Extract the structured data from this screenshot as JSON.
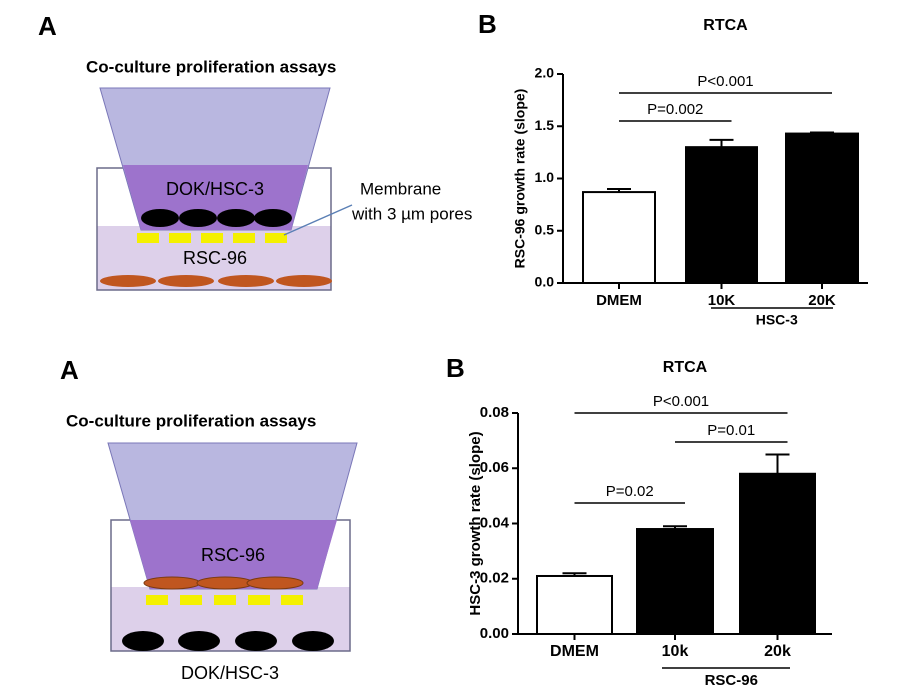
{
  "diagrams": [
    {
      "panel": "A",
      "title": "Co-culture proliferation assays",
      "upper_label": "DOK/HSC-3",
      "lower_label": "RSC-96",
      "note": [
        "Membrane",
        "with 3 µm pores"
      ]
    },
    {
      "panel": "A",
      "title": "Co-culture proliferation assays",
      "upper_label": "RSC-96",
      "lower_label": "DOK/HSC-3"
    }
  ],
  "chart_data": [
    {
      "type": "bar",
      "panel": "B",
      "title": "RTCA",
      "y_label": "RSC-96 growth rate (slope)",
      "categories": [
        "DMEM",
        "10K",
        "20K"
      ],
      "values": [
        0.87,
        1.3,
        1.43
      ],
      "errors": [
        0.03,
        0.07,
        0.01
      ],
      "colors": [
        "#ffffff",
        "#000000",
        "#000000"
      ],
      "ylim": [
        0,
        2
      ],
      "yticks": [
        {
          "value": 0,
          "label": "0.0"
        },
        {
          "value": 0.5,
          "label": "0.5"
        },
        {
          "value": 1,
          "label": "1.0"
        },
        {
          "value": 1.5,
          "label": "1.5"
        },
        {
          "value": 2,
          "label": "2.0"
        }
      ],
      "annotations": [
        "P<0.001",
        "P=0.002"
      ],
      "group_label": "HSC-3"
    },
    {
      "type": "bar",
      "panel": "B",
      "title": "RTCA",
      "y_label": "HSC-3 growth rate (slope)",
      "categories": [
        "DMEM",
        "10k",
        "20k"
      ],
      "values": [
        0.021,
        0.038,
        0.058
      ],
      "errors": [
        0.001,
        0.001,
        0.007
      ],
      "colors": [
        "#ffffff",
        "#000000",
        "#000000"
      ],
      "ylim": [
        0,
        0.08
      ],
      "yticks": [
        {
          "value": 0,
          "label": "0.00"
        },
        {
          "value": 0.02,
          "label": "0.02"
        },
        {
          "value": 0.04,
          "label": "0.04"
        },
        {
          "value": 0.06,
          "label": "0.06"
        },
        {
          "value": 0.08,
          "label": "0.08"
        }
      ],
      "annotations": [
        "P<0.001",
        "P=0.01",
        "P=0.02"
      ],
      "group_label": "RSC-96"
    }
  ]
}
